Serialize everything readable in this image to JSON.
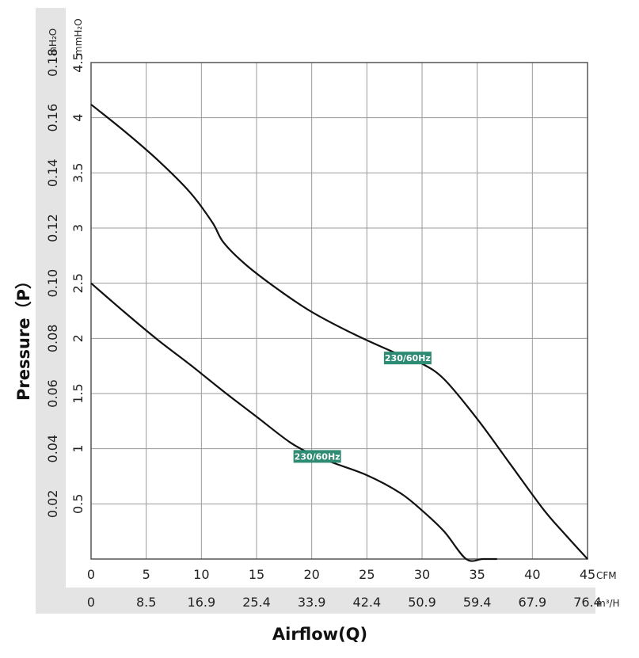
{
  "chart_data": {
    "type": "line",
    "xlabel": "Airflow(Q)",
    "ylabel": "Pressure（P）",
    "x_primary": {
      "unit": "CFM",
      "range": [
        0,
        45
      ],
      "ticks": [
        "0",
        "5",
        "10",
        "15",
        "20",
        "25",
        "30",
        "35",
        "40",
        "45"
      ]
    },
    "x_secondary": {
      "unit": "m³/H",
      "ticks": [
        "0",
        "8.5",
        "16.9",
        "25.4",
        "33.9",
        "42.4",
        "50.9",
        "59.4",
        "67.9",
        "76.4"
      ]
    },
    "y_primary": {
      "unit": "mmH₂O",
      "range": [
        0,
        4.5
      ],
      "ticks": [
        "0.5",
        "1",
        "1.5",
        "2",
        "2.5",
        "3",
        "3.5",
        "4",
        "4.5"
      ]
    },
    "y_secondary": {
      "unit": "inH₂O",
      "ticks": [
        "0.02",
        "0.04",
        "0.06",
        "0.08",
        "0.10",
        "0.12",
        "0.14",
        "0.16",
        "0.18"
      ]
    },
    "grid": true,
    "series": [
      {
        "name": "230/60Hz",
        "x": [
          0,
          3,
          6,
          9,
          11,
          12,
          14,
          17,
          20,
          24,
          28,
          30,
          32,
          35,
          38,
          41,
          43,
          45
        ],
        "y": [
          4.12,
          3.88,
          3.62,
          3.32,
          3.05,
          2.87,
          2.67,
          2.44,
          2.24,
          2.03,
          1.85,
          1.77,
          1.63,
          1.27,
          0.86,
          0.45,
          0.22,
          0.0
        ]
      },
      {
        "name": "230/60Hz",
        "x": [
          0,
          3,
          6,
          9,
          12,
          15,
          18,
          20,
          22,
          25,
          28,
          30,
          32,
          34,
          35.5,
          36.8
        ],
        "y": [
          2.5,
          2.24,
          1.99,
          1.76,
          1.52,
          1.29,
          1.06,
          0.95,
          0.87,
          0.76,
          0.6,
          0.44,
          0.25,
          0.0,
          0.0,
          0.0
        ]
      }
    ]
  }
}
